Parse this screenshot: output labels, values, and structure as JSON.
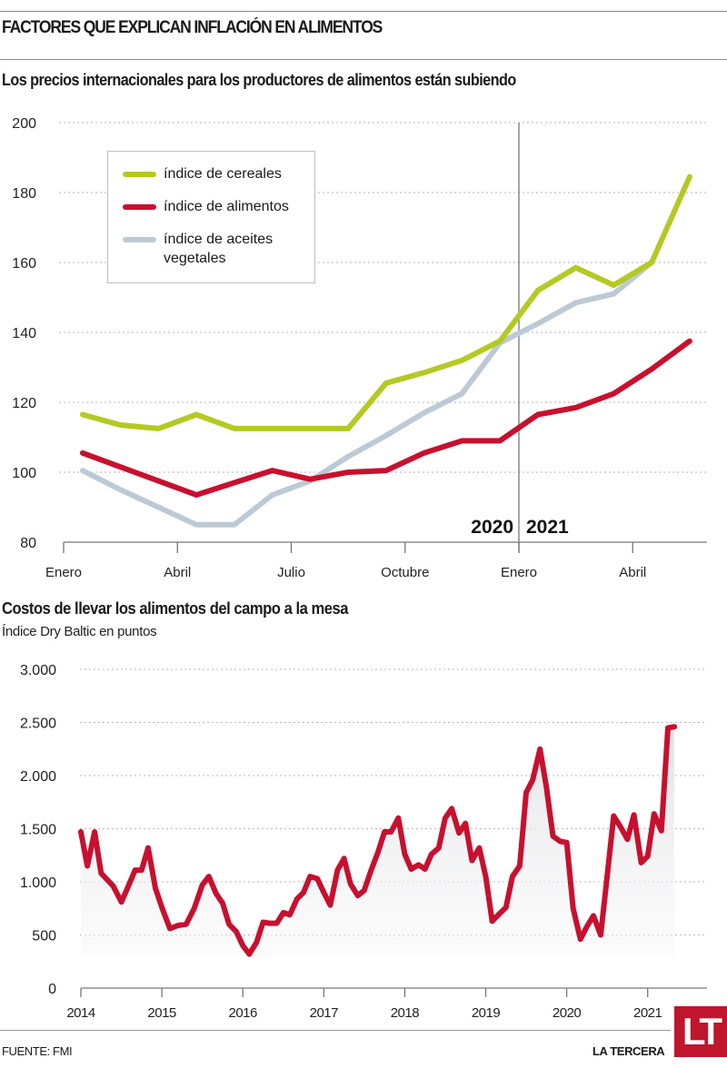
{
  "header": {
    "title": "FACTORES QUE EXPLICAN INFLACIÓN EN ALIMENTOS",
    "subtitle": "Los precios internacionales para los productores de alimentos están subiendo"
  },
  "footer": {
    "source": "FUENTE: FMI",
    "brand": "LA TERCERA",
    "logo": "LT"
  },
  "chart_data": [
    {
      "type": "line",
      "title": "Los precios internacionales para los productores de alimentos están subiendo",
      "xlabel": "",
      "ylabel": "",
      "ylim": [
        80,
        200
      ],
      "yticks": [
        80,
        100,
        120,
        140,
        160,
        180,
        200
      ],
      "grid": true,
      "x_tick_labels": [
        "Enero",
        "Abril",
        "Julio",
        "Octubre",
        "Enero",
        "Abril"
      ],
      "x_tick_months": [
        0,
        3,
        6,
        9,
        12,
        15
      ],
      "year_divider": {
        "month": 12,
        "left_label": "2020",
        "right_label": "2021"
      },
      "legend_position": "top-left",
      "x_months": [
        0.5,
        1.5,
        2.5,
        3.5,
        4.5,
        5.5,
        6.5,
        7.5,
        8.5,
        9.5,
        10.5,
        11.5,
        12.5,
        13.5,
        14.5,
        15.5,
        16.5
      ],
      "series": [
        {
          "name": "índice de cereales",
          "color": "#b5c923",
          "values": [
            116.5,
            113.5,
            112.5,
            116.5,
            112.5,
            112.5,
            112.5,
            112.5,
            125.5,
            128.5,
            132,
            137.5,
            152,
            158.5,
            153.5,
            160,
            184.5
          ]
        },
        {
          "name": "índice de alimentos",
          "color": "#c8102e",
          "values": [
            105.5,
            101.5,
            97.5,
            93.5,
            97,
            100.5,
            98,
            100,
            100.5,
            105.5,
            109,
            109,
            116.5,
            118.5,
            122.5,
            129.5,
            137.5
          ]
        },
        {
          "name": "índice de aceites vegetales",
          "color": "#bccad6",
          "values": [
            100.5,
            95,
            90,
            85,
            85,
            93.5,
            97.5,
            104.5,
            110.5,
            117,
            122.5,
            137,
            142.5,
            148.5,
            151,
            160,
            null
          ]
        }
      ],
      "notes": "Last aceites point plotted at month 16.5 ≈ 160; series starts mid-January 2020"
    },
    {
      "type": "area",
      "title": "Costos de llevar los alimentos del campo a la mesa",
      "subtitle": "Índice Dry Baltic en puntos",
      "xlabel": "",
      "ylabel": "",
      "ylim": [
        0,
        3000
      ],
      "yticks": [
        0,
        500,
        1000,
        1500,
        2000,
        2500,
        3000
      ],
      "ytick_labels": [
        "0",
        "500",
        "1.000",
        "1.500",
        "2.000",
        "2.500",
        "3.000"
      ],
      "x_tick_labels": [
        "2014",
        "2015",
        "2016",
        "2017",
        "2018",
        "2019",
        "2020",
        "2021"
      ],
      "grid": true,
      "series": [
        {
          "name": "Índice Dry Baltic",
          "color": "#c8102e",
          "x": [
            2014.0,
            2014.08,
            2014.17,
            2014.25,
            2014.4,
            2014.5,
            2014.58,
            2014.67,
            2014.75,
            2014.83,
            2014.92,
            2015.0,
            2015.1,
            2015.2,
            2015.3,
            2015.4,
            2015.5,
            2015.58,
            2015.67,
            2015.75,
            2015.83,
            2015.92,
            2016.0,
            2016.08,
            2016.17,
            2016.25,
            2016.33,
            2016.42,
            2016.5,
            2016.58,
            2016.67,
            2016.75,
            2016.83,
            2016.92,
            2017.0,
            2017.08,
            2017.17,
            2017.25,
            2017.33,
            2017.42,
            2017.5,
            2017.58,
            2017.67,
            2017.75,
            2017.83,
            2017.92,
            2018.0,
            2018.08,
            2018.17,
            2018.25,
            2018.33,
            2018.42,
            2018.5,
            2018.58,
            2018.67,
            2018.75,
            2018.83,
            2018.92,
            2019.0,
            2019.08,
            2019.17,
            2019.25,
            2019.33,
            2019.42,
            2019.5,
            2019.58,
            2019.67,
            2019.75,
            2019.83,
            2019.92,
            2020.0,
            2020.08,
            2020.17,
            2020.25,
            2020.33,
            2020.42,
            2020.5,
            2020.58,
            2020.67,
            2020.75,
            2020.83,
            2020.92,
            2021.0,
            2021.08,
            2021.17,
            2021.25,
            2021.33
          ],
          "values": [
            1470,
            1150,
            1470,
            1080,
            960,
            810,
            950,
            1110,
            1110,
            1320,
            940,
            760,
            560,
            590,
            600,
            750,
            970,
            1050,
            890,
            800,
            600,
            530,
            400,
            320,
            430,
            620,
            610,
            610,
            710,
            690,
            840,
            900,
            1050,
            1030,
            900,
            780,
            1110,
            1220,
            980,
            870,
            920,
            1100,
            1280,
            1470,
            1470,
            1600,
            1260,
            1120,
            1160,
            1120,
            1260,
            1320,
            1600,
            1690,
            1460,
            1550,
            1200,
            1320,
            1050,
            630,
            700,
            760,
            1050,
            1150,
            1840,
            1960,
            2250,
            1890,
            1430,
            1380,
            1370,
            750,
            460,
            580,
            680,
            500,
            1050,
            1620,
            1510,
            1400,
            1630,
            1180,
            1240,
            1640,
            1480,
            2450,
            2460
          ]
        }
      ]
    }
  ]
}
